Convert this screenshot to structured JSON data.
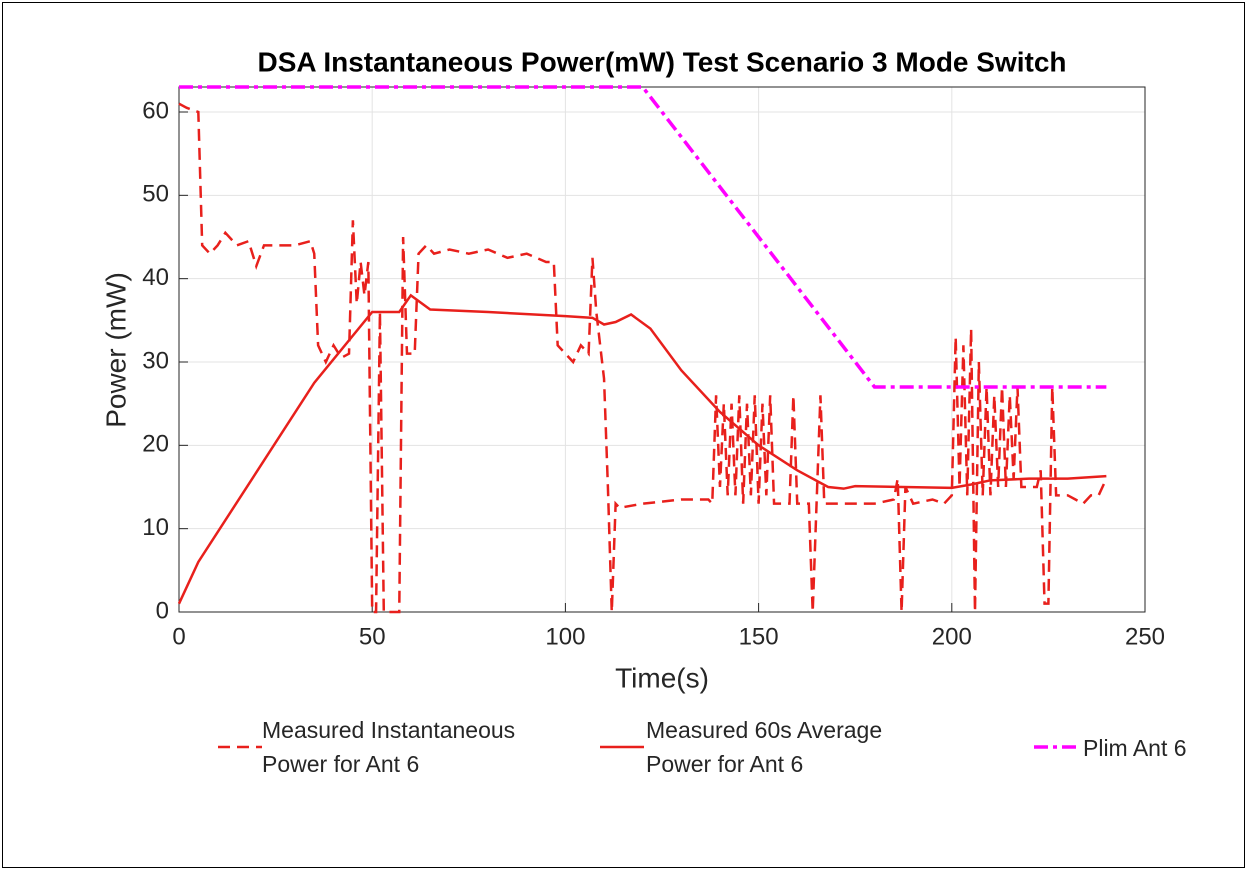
{
  "chart_data": {
    "type": "line",
    "title": "DSA Instantaneous Power(mW) Test Scenario 3 Mode Switch",
    "xlabel": "Time(s)",
    "ylabel": "Power (mW)",
    "xlim": [
      0,
      250
    ],
    "xticks": [
      0,
      50,
      100,
      150,
      200,
      250
    ],
    "ylim": [
      0,
      63
    ],
    "yticks": [
      0,
      10,
      20,
      30,
      40,
      50,
      60
    ],
    "grid": true,
    "legend": "bottom",
    "series": [
      {
        "name": "Measured Instantaneous Power for Ant 6",
        "color": "#e8201c",
        "style": "dashed",
        "x": [
          0,
          2,
          5,
          6,
          8,
          10,
          12,
          15,
          18,
          20,
          22,
          30,
          34,
          35,
          36,
          38,
          40,
          42,
          44,
          45,
          46,
          47,
          48,
          49,
          50,
          51,
          52,
          53,
          57,
          58,
          59,
          61,
          62,
          64,
          66,
          70,
          75,
          80,
          85,
          90,
          95,
          97,
          98,
          100,
          102,
          104,
          106,
          107,
          108,
          109,
          110,
          111,
          112,
          113,
          114,
          120,
          130,
          137,
          138,
          139,
          140,
          141,
          142,
          143,
          144,
          145,
          146,
          147,
          148,
          149,
          150,
          151,
          152,
          153,
          154,
          155,
          158,
          159,
          160,
          162,
          163,
          164,
          165,
          166,
          167,
          170,
          175,
          180,
          185,
          186,
          187,
          188,
          190,
          195,
          198,
          200,
          201,
          202,
          203,
          204,
          205,
          206,
          207,
          208,
          209,
          210,
          211,
          212,
          213,
          214,
          215,
          216,
          217,
          218,
          222,
          223,
          224,
          225,
          226,
          227,
          229,
          230,
          232,
          234,
          236,
          238,
          240
        ],
        "values": [
          61,
          60.5,
          60,
          44,
          43,
          44,
          45.5,
          44,
          44.5,
          41.5,
          44,
          44,
          44.5,
          43,
          32,
          30,
          32,
          30.5,
          31,
          47,
          37,
          42,
          38,
          42,
          0,
          0,
          36,
          0,
          0,
          45,
          31,
          31,
          43,
          44,
          43,
          43.5,
          43,
          43.5,
          42.5,
          43,
          42,
          42,
          32,
          31,
          30,
          32,
          31,
          42.5,
          36,
          32,
          28,
          15,
          0,
          13,
          12.5,
          13,
          13.5,
          13.5,
          13,
          26,
          15,
          25,
          14,
          25,
          14,
          26,
          13,
          25,
          14,
          26,
          13,
          25,
          14,
          26,
          13,
          13,
          13,
          26,
          13,
          13,
          13,
          0,
          13,
          26,
          13,
          13,
          13,
          13,
          13.5,
          16,
          0,
          15,
          13,
          13.5,
          13,
          14,
          33,
          15,
          32,
          14,
          34,
          0,
          30,
          14,
          27,
          14,
          26,
          15,
          27,
          15,
          26,
          16,
          27,
          15,
          15,
          17,
          1,
          1,
          27,
          14,
          14,
          14,
          13.5,
          13,
          14,
          14,
          16
        ]
      },
      {
        "name": "Measured 60s Average Power for Ant 6",
        "color": "#e8201c",
        "style": "solid",
        "x": [
          0,
          5,
          35,
          50,
          57,
          60,
          65,
          80,
          100,
          107,
          110,
          113,
          117,
          122,
          130,
          140,
          150,
          160,
          168,
          172,
          175,
          200,
          205,
          210,
          220,
          230,
          240
        ],
        "values": [
          1,
          6,
          27.5,
          36,
          36,
          38,
          36.3,
          36,
          35.5,
          35.3,
          34.5,
          34.8,
          35.7,
          34,
          29,
          24,
          20,
          17,
          15,
          14.8,
          15.1,
          14.9,
          15.3,
          15.8,
          16,
          16,
          16.3
        ]
      },
      {
        "name": "Plim Ant 6",
        "color": "#ff00ff",
        "style": "dashdot",
        "x": [
          0,
          120,
          180,
          240
        ],
        "values": [
          63,
          63,
          27,
          27
        ]
      }
    ]
  }
}
